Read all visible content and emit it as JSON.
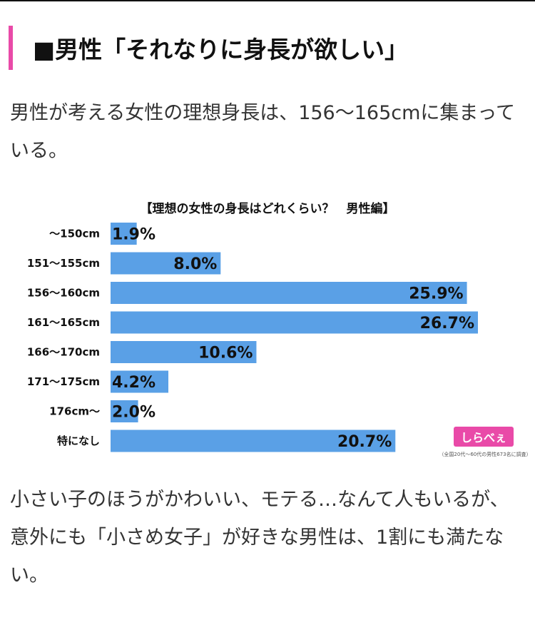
{
  "heading": "■男性「それなりに身長が欲しい」",
  "paragraph1": "男性が考える女性の理想身長は、156〜165cmに集まっている。",
  "paragraph2": "小さい子のほうがかわいい、モテる…なんて人もいるが、意外にも「小さめ女子」が好きな男性は、1割にも満たない。",
  "logo_text": "しらべぇ",
  "colors": {
    "accent": "#e94aa8",
    "bar": "#5aa0e6"
  },
  "chart_data": {
    "type": "bar",
    "orientation": "horizontal",
    "title": "【理想の女性の身長はどれくらい？　男性編】",
    "categories": [
      "〜150cm",
      "151〜155cm",
      "156〜160cm",
      "161〜165cm",
      "166〜170cm",
      "171〜175cm",
      "176cm〜",
      "特になし"
    ],
    "values": [
      1.9,
      8.0,
      25.9,
      26.7,
      10.6,
      4.2,
      2.0,
      20.7
    ],
    "value_labels": [
      "1.9%",
      "8.0%",
      "25.9%",
      "26.7%",
      "10.6%",
      "4.2%",
      "2.0%",
      "20.7%"
    ],
    "note": "（全国20代〜60代の男性673名に調査）",
    "xlim": [
      0,
      26.7
    ],
    "grid": false,
    "legend": "none"
  }
}
